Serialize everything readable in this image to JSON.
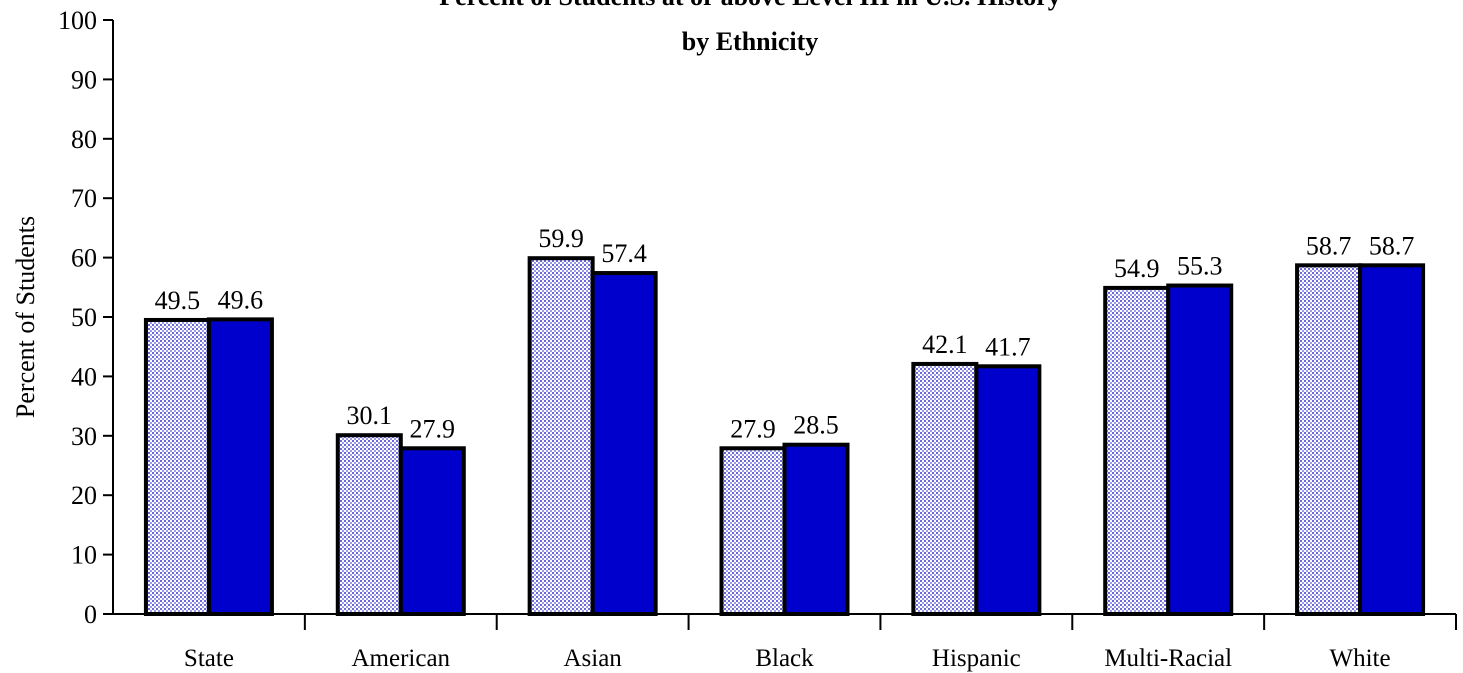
{
  "chart_data": {
    "type": "bar",
    "title": "Percent of Students at or above Level III in U.S. History",
    "subtitle": "by Ethnicity",
    "xlabel": "",
    "ylabel": "Percent of Students",
    "ylim": [
      0,
      100
    ],
    "yticks": [
      0,
      10,
      20,
      30,
      40,
      50,
      60,
      70,
      80,
      90,
      100
    ],
    "ytick_labels": [
      "0",
      "10",
      "20",
      "30",
      "40",
      "50",
      "60",
      "70",
      "80",
      "90",
      "100"
    ],
    "grid": false,
    "legend": "none",
    "categories": [
      "State",
      "American",
      "Asian",
      "Black",
      "Hispanic",
      "Multi-Racial",
      "White"
    ],
    "series": [
      {
        "values": [
          49.5,
          30.1,
          59.9,
          27.9,
          42.1,
          54.9,
          58.7
        ],
        "labels": [
          "49.5",
          "30.1",
          "59.9",
          "27.9",
          "42.1",
          "54.9",
          "58.7"
        ],
        "color": "#c8c8f4",
        "pattern": "dotted"
      },
      {
        "values": [
          49.6,
          27.9,
          57.4,
          28.5,
          41.7,
          55.3,
          58.7
        ],
        "labels": [
          "49.6",
          "27.9",
          "57.4",
          "28.5",
          "41.7",
          "55.3",
          "58.7"
        ],
        "color": "#0000cc",
        "pattern": "solid"
      }
    ]
  }
}
